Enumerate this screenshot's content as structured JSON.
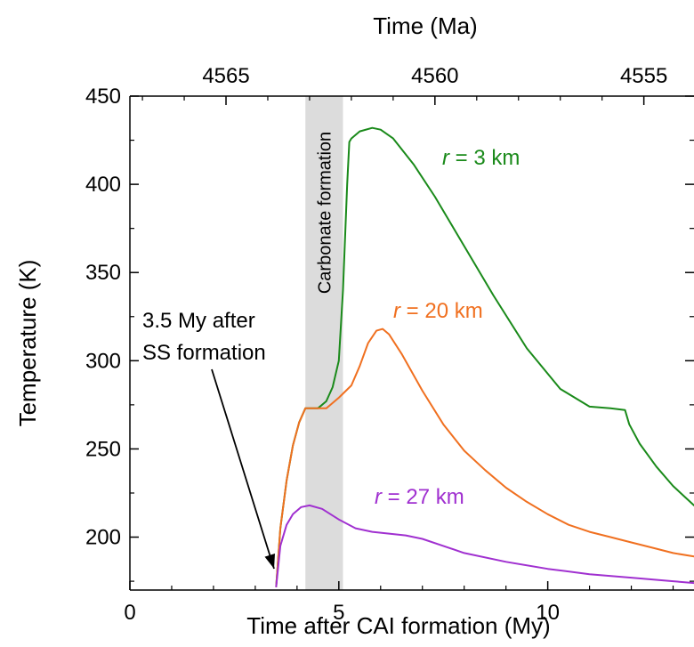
{
  "chart_data": {
    "type": "line",
    "title": "",
    "xlabel": "Time after CAI formation (My)",
    "x2label": "Time (Ma)",
    "ylabel": "Temperature (K)",
    "xlim": [
      0,
      13.5
    ],
    "ylim": [
      170,
      450
    ],
    "xticks": [
      0,
      5,
      10
    ],
    "yticks": [
      200,
      250,
      300,
      350,
      400,
      450
    ],
    "x2ticks": [
      {
        "value": 4565,
        "at": 2.3
      },
      {
        "value": 4560,
        "at": 7.3
      },
      {
        "value": 4555,
        "at": 12.3
      }
    ],
    "band": {
      "x0": 4.2,
      "x1": 5.1,
      "label": "Carbonate formation",
      "color": "#dcdcdc"
    },
    "annotation": {
      "lines": [
        "3.5 My after",
        "SS formation"
      ],
      "target": [
        3.45,
        172
      ]
    },
    "series": [
      {
        "name": "r = 3 km",
        "name_prefix": "r",
        "name_suffix": " = 3 km",
        "color": "#1a8a1a",
        "x": [
          3.5,
          3.6,
          3.75,
          3.9,
          4.05,
          4.2,
          4.5,
          4.7,
          4.85,
          5.0,
          5.1,
          5.2,
          5.25,
          5.3,
          5.5,
          5.8,
          6.0,
          6.3,
          6.8,
          7.3,
          8.0,
          8.7,
          9.5,
          10.3,
          11.0,
          11.5,
          11.85,
          11.95,
          12.2,
          12.6,
          13.0,
          13.5
        ],
        "y": [
          172,
          205,
          232,
          252,
          265,
          273,
          273,
          277,
          285,
          300,
          340,
          400,
          424,
          426,
          430,
          432,
          431,
          426,
          411,
          393,
          365,
          337,
          307,
          284,
          274,
          273,
          272,
          264,
          253,
          240,
          229,
          218
        ]
      },
      {
        "name": "r = 20 km",
        "name_prefix": "r",
        "name_suffix": " = 20 km",
        "color": "#f07020",
        "x": [
          3.5,
          3.6,
          3.75,
          3.9,
          4.05,
          4.2,
          4.5,
          4.7,
          4.8,
          5.0,
          5.3,
          5.5,
          5.7,
          5.9,
          6.05,
          6.2,
          6.5,
          7.0,
          7.5,
          8.0,
          8.5,
          9.0,
          9.5,
          10.0,
          10.5,
          11.0,
          11.5,
          12.0,
          12.5,
          13.0,
          13.5
        ],
        "y": [
          172,
          205,
          232,
          252,
          265,
          273,
          273,
          273,
          275,
          279,
          286,
          297,
          310,
          317,
          318,
          315,
          304,
          283,
          264,
          249,
          238,
          228,
          220,
          213,
          207,
          203,
          200,
          197,
          194,
          191,
          189
        ]
      },
      {
        "name": "r = 27 km",
        "name_prefix": "r",
        "name_suffix": " = 27 km",
        "color": "#a030d0",
        "x": [
          3.5,
          3.6,
          3.75,
          3.9,
          4.1,
          4.3,
          4.6,
          5.0,
          5.4,
          5.8,
          6.2,
          6.6,
          7.0,
          7.5,
          8.0,
          9.0,
          10.0,
          11.0,
          12.0,
          13.0,
          13.5
        ],
        "y": [
          172,
          195,
          207,
          213,
          217,
          218,
          216,
          210,
          205,
          203,
          202,
          201,
          199,
          195,
          191,
          186,
          182,
          179,
          177,
          175,
          174
        ]
      }
    ]
  }
}
